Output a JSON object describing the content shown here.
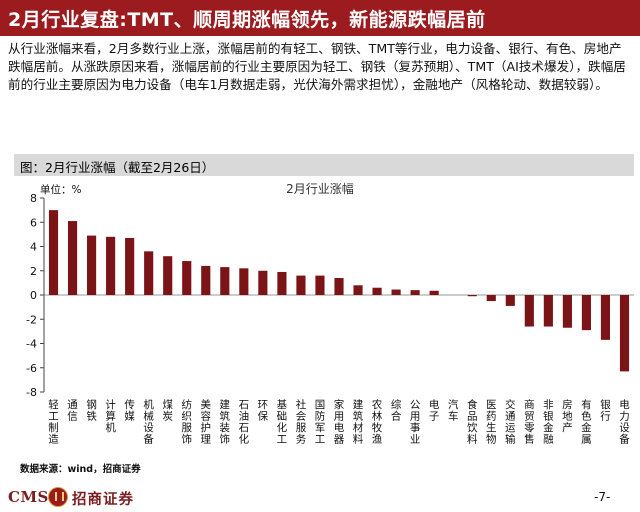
{
  "header": {
    "title": "2月行业复盘:TMT、顺周期涨幅领先，新能源跌幅居前"
  },
  "summary": {
    "text": "从行业涨幅来看，2月多数行业上涨，涨幅居前的有轻工、钢铁、TMT等行业，电力设备、银行、有色、房地产跌幅居前。从涨跌原因来看，涨幅居前的行业主要原因为轻工、钢铁（复苏预期）、TMT（AI技术爆发），跌幅居前的行业主要原因为电力设备（电车1月数据走弱，光伏海外需求担忧），金融地产（风格轮动、数据较弱）。"
  },
  "figure": {
    "label": "图：2月行业涨幅（截至2月26日）",
    "source": "数据来源：wind，招商证券"
  },
  "footer": {
    "logo_text": "CMS",
    "company": "招商证券",
    "page": "-7-"
  },
  "colors": {
    "accent": "#9b1b1e",
    "bar": "#7a1416"
  },
  "chart_data": {
    "type": "bar",
    "title": "2月行业涨幅",
    "unit_label": "单位：%",
    "categories": [
      "轻工制造",
      "通信",
      "钢铁",
      "计算机",
      "传媒",
      "机械设备",
      "煤炭",
      "纺织服饰",
      "美容护理",
      "建筑装饰",
      "石油石化",
      "环保",
      "基础化工",
      "社会服务",
      "国防军工",
      "家用电器",
      "建筑材料",
      "农林牧渔",
      "综合",
      "公用事业",
      "电子",
      "汽车",
      "食品饮料",
      "医药生物",
      "交通运输",
      "商贸零售",
      "非银金融",
      "房地产",
      "有色金属",
      "银行",
      "电力设备"
    ],
    "values": [
      7.0,
      6.1,
      4.9,
      4.8,
      4.7,
      3.6,
      3.2,
      2.8,
      2.4,
      2.3,
      2.2,
      2.0,
      1.9,
      1.6,
      1.6,
      1.4,
      0.8,
      0.6,
      0.45,
      0.4,
      0.35,
      0.0,
      -0.1,
      -0.5,
      -0.9,
      -2.6,
      -2.6,
      -2.7,
      -2.9,
      -3.7,
      -6.3
    ],
    "ylim": [
      -8,
      8
    ],
    "yticks": [
      -8,
      -6,
      -4,
      -2,
      0,
      2,
      4,
      6,
      8
    ],
    "grid": false,
    "legend": "none"
  }
}
